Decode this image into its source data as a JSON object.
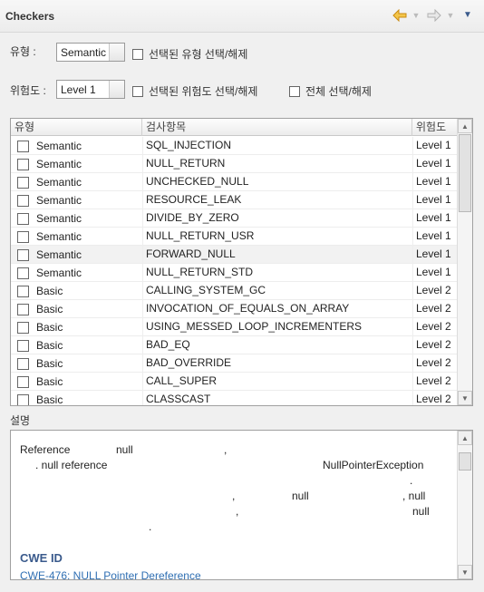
{
  "panel": {
    "title": "Checkers"
  },
  "toolbar": {
    "back_icon": "arrow-left-icon",
    "forward_icon": "arrow-right-icon",
    "menu_icon": "chevron-down-icon"
  },
  "filters": {
    "type_label": "유형 :",
    "type_value": "Semantic",
    "type_toggle_label": "선택된 유형 선택/해제",
    "risk_label": "위험도 :",
    "risk_value": "Level 1",
    "risk_toggle_label": "선택된 위험도 선택/해제",
    "all_toggle_label": "전체 선택/해제"
  },
  "table": {
    "headers": [
      "유형",
      "검사항목",
      "위험도"
    ],
    "rows": [
      {
        "type": "Semantic",
        "name": "SQL_INJECTION",
        "level": "Level 1"
      },
      {
        "type": "Semantic",
        "name": "NULL_RETURN",
        "level": "Level 1"
      },
      {
        "type": "Semantic",
        "name": "UNCHECKED_NULL",
        "level": "Level 1"
      },
      {
        "type": "Semantic",
        "name": "RESOURCE_LEAK",
        "level": "Level 1"
      },
      {
        "type": "Semantic",
        "name": "DIVIDE_BY_ZERO",
        "level": "Level 1"
      },
      {
        "type": "Semantic",
        "name": "NULL_RETURN_USR",
        "level": "Level 1"
      },
      {
        "type": "Semantic",
        "name": "FORWARD_NULL",
        "level": "Level 1"
      },
      {
        "type": "Semantic",
        "name": "NULL_RETURN_STD",
        "level": "Level 1"
      },
      {
        "type": "Basic",
        "name": "CALLING_SYSTEM_GC",
        "level": "Level 2"
      },
      {
        "type": "Basic",
        "name": "INVOCATION_OF_EQUALS_ON_ARRAY",
        "level": "Level 2"
      },
      {
        "type": "Basic",
        "name": "USING_MESSED_LOOP_INCREMENTERS",
        "level": "Level 2"
      },
      {
        "type": "Basic",
        "name": "BAD_EQ",
        "level": "Level 2"
      },
      {
        "type": "Basic",
        "name": "BAD_OVERRIDE",
        "level": "Level 2"
      },
      {
        "type": "Basic",
        "name": "CALL_SUPER",
        "level": "Level 2"
      },
      {
        "type": "Basic",
        "name": "CLASSCAST",
        "level": "Level 2"
      }
    ]
  },
  "description": {
    "label": "설명",
    "fragments": [
      "Reference",
      "null",
      ",",
      ". null reference",
      "NullPointerException",
      ".",
      ",",
      "null",
      ", null",
      ",",
      "null",
      "."
    ],
    "cwe_heading": "CWE ID",
    "cwe_link": "CWE-476: NULL Pointer Dereference"
  }
}
